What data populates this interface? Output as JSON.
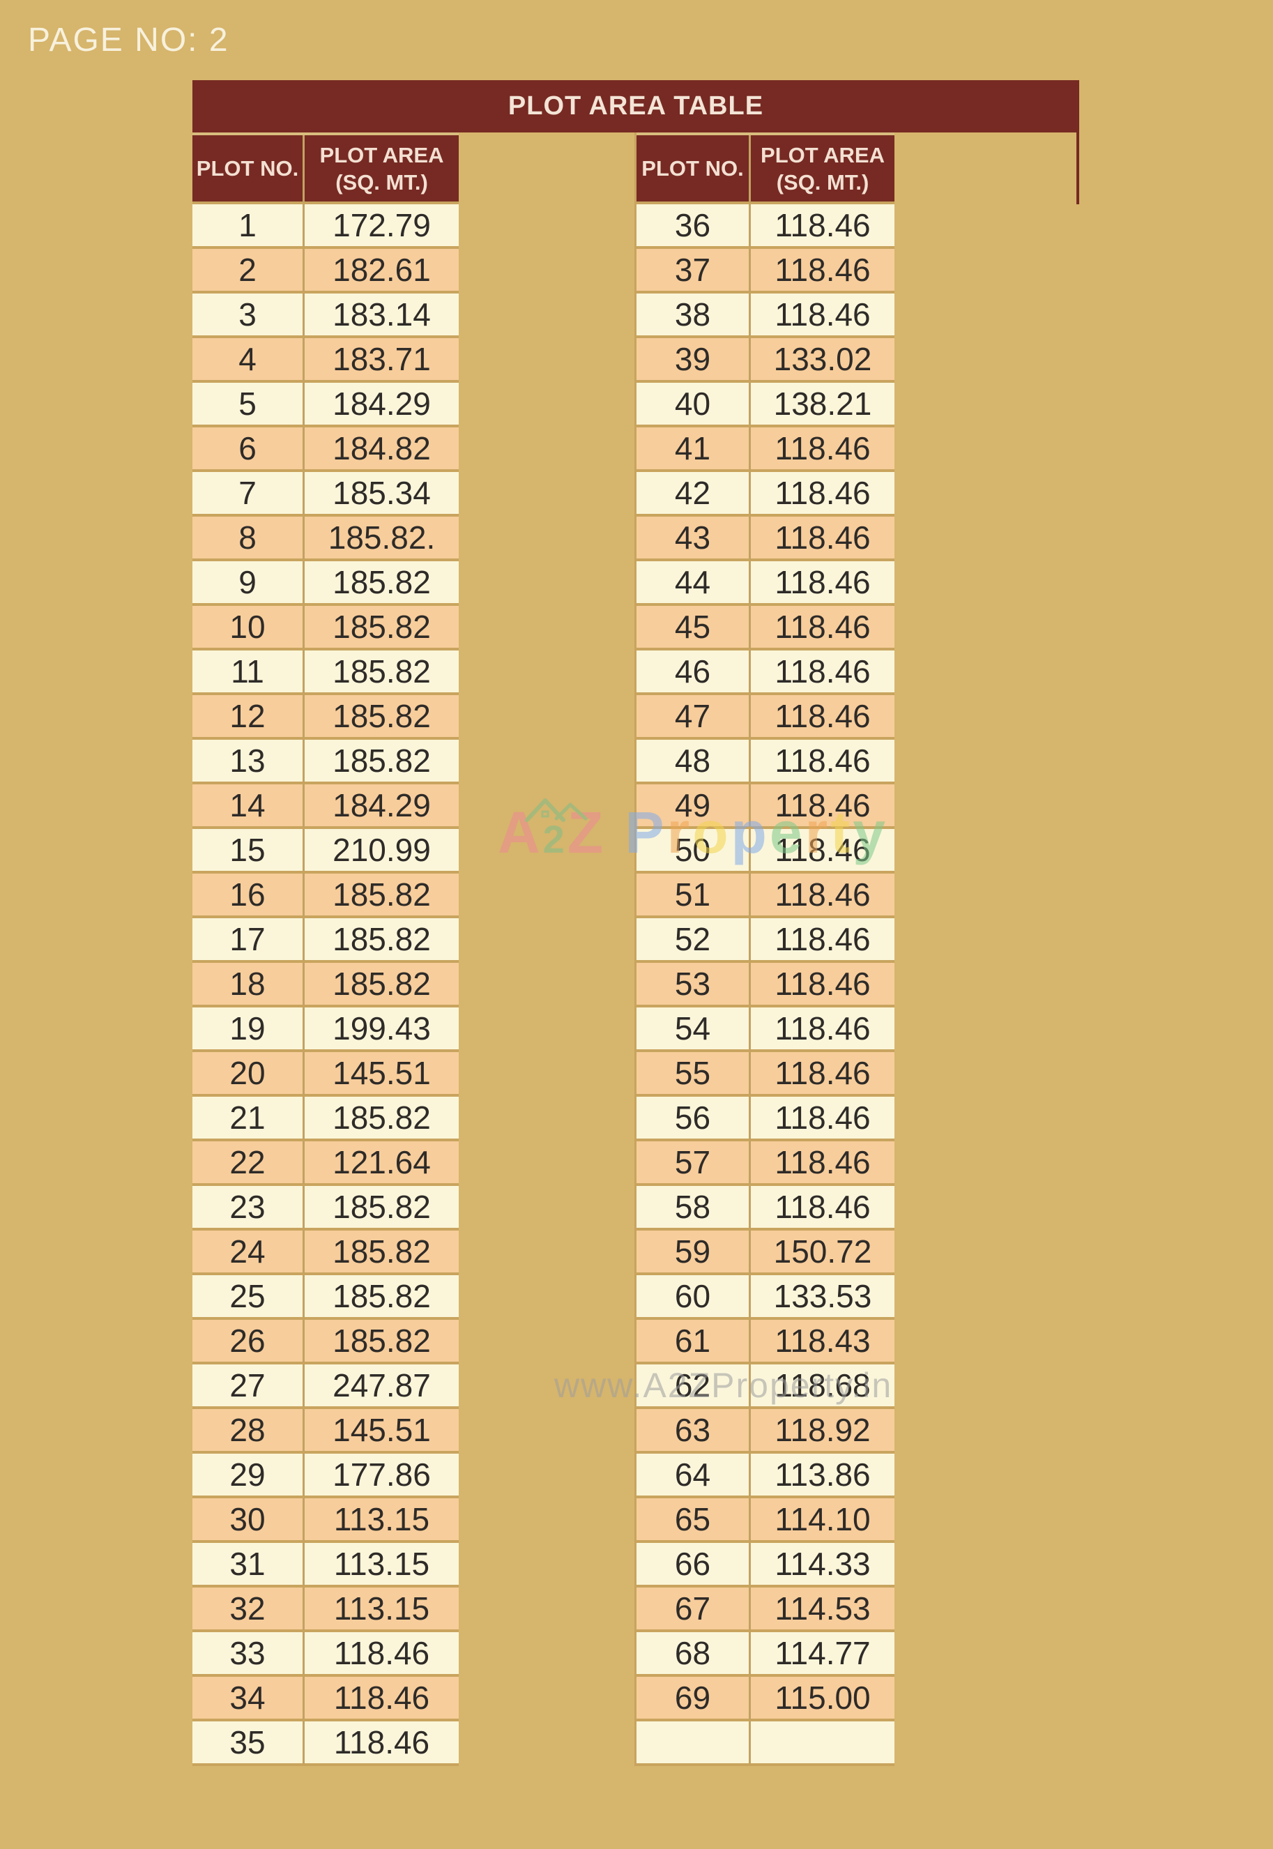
{
  "page_label": "PAGE NO: 2",
  "table": {
    "title": "PLOT AREA TABLE",
    "headers": {
      "plot_no": "PLOT NO.",
      "area_line1": "PLOT AREA",
      "area_line2": "(SQ. MT.)"
    },
    "left_rows": [
      {
        "no": "1",
        "area": "172.79"
      },
      {
        "no": "2",
        "area": "182.61"
      },
      {
        "no": "3",
        "area": "183.14"
      },
      {
        "no": "4",
        "area": "183.71"
      },
      {
        "no": "5",
        "area": "184.29"
      },
      {
        "no": "6",
        "area": "184.82"
      },
      {
        "no": "7",
        "area": "185.34"
      },
      {
        "no": "8",
        "area": "185.82."
      },
      {
        "no": "9",
        "area": "185.82"
      },
      {
        "no": "10",
        "area": "185.82"
      },
      {
        "no": "11",
        "area": "185.82"
      },
      {
        "no": "12",
        "area": "185.82"
      },
      {
        "no": "13",
        "area": "185.82"
      },
      {
        "no": "14",
        "area": "184.29"
      },
      {
        "no": "15",
        "area": "210.99"
      },
      {
        "no": "16",
        "area": "185.82"
      },
      {
        "no": "17",
        "area": "185.82"
      },
      {
        "no": "18",
        "area": "185.82"
      },
      {
        "no": "19",
        "area": "199.43"
      },
      {
        "no": "20",
        "area": "145.51"
      },
      {
        "no": "21",
        "area": "185.82"
      },
      {
        "no": "22",
        "area": "121.64"
      },
      {
        "no": "23",
        "area": "185.82"
      },
      {
        "no": "24",
        "area": "185.82"
      },
      {
        "no": "25",
        "area": "185.82"
      },
      {
        "no": "26",
        "area": "185.82"
      },
      {
        "no": "27",
        "area": "247.87"
      },
      {
        "no": "28",
        "area": "145.51"
      },
      {
        "no": "29",
        "area": "177.86"
      },
      {
        "no": "30",
        "area": "113.15"
      },
      {
        "no": "31",
        "area": "113.15"
      },
      {
        "no": "32",
        "area": "113.15"
      },
      {
        "no": "33",
        "area": "118.46"
      },
      {
        "no": "34",
        "area": "118.46"
      },
      {
        "no": "35",
        "area": "118.46"
      }
    ],
    "right_rows": [
      {
        "no": "36",
        "area": "118.46"
      },
      {
        "no": "37",
        "area": "118.46"
      },
      {
        "no": "38",
        "area": "118.46"
      },
      {
        "no": "39",
        "area": "133.02"
      },
      {
        "no": "40",
        "area": "138.21"
      },
      {
        "no": "41",
        "area": "118.46"
      },
      {
        "no": "42",
        "area": "118.46"
      },
      {
        "no": "43",
        "area": "118.46"
      },
      {
        "no": "44",
        "area": "118.46"
      },
      {
        "no": "45",
        "area": "118.46"
      },
      {
        "no": "46",
        "area": "118.46"
      },
      {
        "no": "47",
        "area": "118.46"
      },
      {
        "no": "48",
        "area": "118.46"
      },
      {
        "no": "49",
        "area": "118.46"
      },
      {
        "no": "50",
        "area": "118.46"
      },
      {
        "no": "51",
        "area": "118.46"
      },
      {
        "no": "52",
        "area": "118.46"
      },
      {
        "no": "53",
        "area": "118.46"
      },
      {
        "no": "54",
        "area": "118.46"
      },
      {
        "no": "55",
        "area": "118.46"
      },
      {
        "no": "56",
        "area": "118.46"
      },
      {
        "no": "57",
        "area": "118.46"
      },
      {
        "no": "58",
        "area": "118.46"
      },
      {
        "no": "59",
        "area": "150.72"
      },
      {
        "no": "60",
        "area": "133.53"
      },
      {
        "no": "61",
        "area": "118.43"
      },
      {
        "no": "62",
        "area": "118.68"
      },
      {
        "no": "63",
        "area": "118.92"
      },
      {
        "no": "64",
        "area": "113.86"
      },
      {
        "no": "65",
        "area": "114.10"
      },
      {
        "no": "66",
        "area": "114.33"
      },
      {
        "no": "67",
        "area": "114.53"
      },
      {
        "no": "68",
        "area": "114.77"
      },
      {
        "no": "69",
        "area": "115.00"
      },
      {
        "no": "",
        "area": ""
      }
    ]
  },
  "watermarks": {
    "brand_letters": [
      {
        "ch": "A",
        "color": "#ee8a94",
        "small": false
      },
      {
        "ch": "2",
        "color": "#7fbe88",
        "small": true
      },
      {
        "ch": "Z",
        "color": "#ee8a94",
        "small": false
      },
      {
        "ch": " ",
        "color": "",
        "small": false
      },
      {
        "ch": "P",
        "color": "#83abe9",
        "small": false
      },
      {
        "ch": "r",
        "color": "#f0a654",
        "small": false
      },
      {
        "ch": "o",
        "color": "#f2d44e",
        "small": false
      },
      {
        "ch": "p",
        "color": "#83abe9",
        "small": false
      },
      {
        "ch": "e",
        "color": "#7fc98a",
        "small": false
      },
      {
        "ch": "r",
        "color": "#f0a654",
        "small": false
      },
      {
        "ch": "t",
        "color": "#f2d44e",
        "small": false
      },
      {
        "ch": "y",
        "color": "#7fc98a",
        "small": false
      }
    ],
    "url": "www.A2ZProperty.in"
  },
  "colors": {
    "background": "#d6b56c",
    "maroon_header": "#762a23",
    "row_cream": "#fbf6da",
    "row_peach": "#f7cd9b",
    "border_gold": "#c9a45e",
    "header_text": "#f3e0d2",
    "data_text": "#2e2b28",
    "page_label_text": "#f7f1dd",
    "url_watermark_gray": "#9e9e9e"
  }
}
